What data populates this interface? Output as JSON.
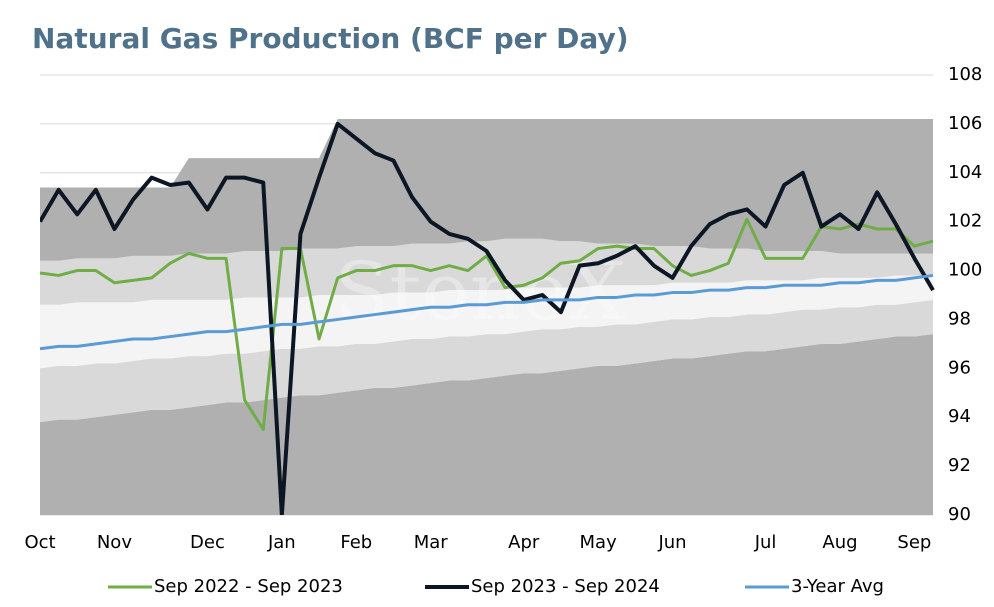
{
  "chart_data": {
    "type": "line",
    "title": "Natural Gas Production (BCF per Day)",
    "watermark": "StoneX",
    "categories": [
      "Oct",
      null,
      null,
      null,
      "Nov",
      null,
      null,
      null,
      null,
      "Dec",
      null,
      null,
      null,
      "Jan",
      null,
      null,
      null,
      "Feb",
      null,
      null,
      null,
      "Mar",
      null,
      null,
      null,
      null,
      "Apr",
      null,
      null,
      null,
      "May",
      null,
      null,
      null,
      "Jun",
      null,
      null,
      null,
      null,
      "Jul",
      null,
      null,
      null,
      "Aug",
      null,
      null,
      null,
      "Sep",
      null
    ],
    "ylim": [
      90,
      108
    ],
    "yticks": [
      90,
      92,
      94,
      96,
      98,
      100,
      102,
      104,
      106,
      108
    ],
    "grid": true,
    "bands": [
      {
        "color": "#b1b0b0",
        "values": [
          93.8,
          93.9,
          93.9,
          94.0,
          94.1,
          94.2,
          94.3,
          94.3,
          94.4,
          94.5,
          94.6,
          94.6,
          94.7,
          94.8,
          94.9,
          94.9,
          95.0,
          95.1,
          95.2,
          95.2,
          95.3,
          95.4,
          95.5,
          95.5,
          95.6,
          95.7,
          95.8,
          95.8,
          95.9,
          96.0,
          96.1,
          96.1,
          96.2,
          96.3,
          96.4,
          96.4,
          96.5,
          96.6,
          96.7,
          96.7,
          96.8,
          96.9,
          97.0,
          97.0,
          97.1,
          97.2,
          97.3,
          97.3,
          97.4
        ]
      },
      {
        "color": "#d9d9d9",
        "values": [
          96.0,
          96.1,
          96.1,
          96.2,
          96.2,
          96.3,
          96.4,
          96.4,
          96.5,
          96.5,
          96.6,
          96.6,
          96.7,
          96.8,
          96.8,
          96.9,
          96.9,
          97.0,
          97.0,
          97.1,
          97.2,
          97.2,
          97.3,
          97.3,
          97.4,
          97.4,
          97.5,
          97.6,
          97.6,
          97.7,
          97.7,
          97.8,
          97.8,
          97.9,
          98.0,
          98.0,
          98.1,
          98.1,
          98.2,
          98.2,
          98.3,
          98.4,
          98.4,
          98.5,
          98.5,
          98.6,
          98.6,
          98.7,
          98.8
        ]
      },
      {
        "color": "#f4f4f4",
        "values": [
          98.6,
          98.6,
          98.7,
          98.7,
          98.7,
          98.7,
          98.8,
          98.8,
          98.8,
          98.8,
          98.8,
          98.9,
          98.9,
          98.9,
          98.9,
          99.0,
          99.0,
          99.0,
          99.0,
          99.1,
          99.1,
          99.1,
          99.2,
          99.2,
          99.2,
          99.2,
          99.3,
          99.3,
          99.3,
          99.3,
          99.4,
          99.4,
          99.4,
          99.4,
          99.5,
          99.5,
          99.5,
          99.5,
          99.6,
          99.6,
          99.6,
          99.6,
          99.7,
          99.7,
          99.7,
          99.7,
          99.8,
          99.8,
          99.8
        ]
      },
      {
        "color": "#d9d9d9",
        "values": [
          100.4,
          100.4,
          100.5,
          100.5,
          100.5,
          100.6,
          100.6,
          100.6,
          100.7,
          100.7,
          100.7,
          100.8,
          100.8,
          100.8,
          100.9,
          100.9,
          100.9,
          101.0,
          101.0,
          101.0,
          101.1,
          101.1,
          101.1,
          101.2,
          101.2,
          101.3,
          101.3,
          101.3,
          101.2,
          101.2,
          101.1,
          101.1,
          101.1,
          101.0,
          101.0,
          101.0,
          100.9,
          100.9,
          100.9,
          100.8,
          100.8,
          100.8,
          100.8,
          100.7,
          100.7,
          100.7,
          100.7,
          100.7,
          100.7
        ]
      },
      {
        "color": "#b1b0b0",
        "values": [
          103.4,
          103.4,
          103.4,
          103.4,
          103.4,
          103.4,
          103.4,
          103.4,
          104.6,
          104.6,
          104.6,
          104.6,
          104.6,
          104.6,
          104.6,
          104.6,
          106.2,
          106.2,
          106.2,
          106.2,
          106.2,
          106.2,
          106.2,
          106.2,
          106.2,
          106.2,
          106.2,
          106.2,
          106.2,
          106.2,
          106.2,
          106.2,
          106.2,
          106.2,
          106.2,
          106.2,
          106.2,
          106.2,
          106.2,
          106.2,
          106.2,
          106.2,
          106.2,
          106.2,
          106.2,
          106.2,
          106.2,
          106.2,
          106.2
        ]
      }
    ],
    "series": [
      {
        "name": "Sep 2022 - Sep 2023",
        "color": "#70ad47",
        "width": 3,
        "values": [
          99.9,
          99.8,
          100.0,
          100.0,
          99.5,
          99.6,
          99.7,
          100.3,
          100.7,
          100.5,
          100.5,
          94.7,
          93.5,
          100.9,
          100.9,
          97.2,
          99.7,
          100.0,
          100.0,
          100.2,
          100.2,
          100.0,
          100.2,
          100.0,
          100.6,
          99.3,
          99.4,
          99.7,
          100.3,
          100.4,
          100.9,
          101.0,
          100.9,
          100.9,
          100.2,
          99.8,
          100.0,
          100.3,
          102.1,
          100.5,
          100.5,
          100.5,
          101.8,
          101.7,
          101.9,
          101.7,
          101.7,
          101.0,
          101.2
        ]
      },
      {
        "name": "Sep 2023 - Sep 2024",
        "color": "#0d1624",
        "width": 4,
        "values": [
          102.0,
          103.3,
          102.3,
          103.3,
          101.7,
          102.9,
          103.8,
          103.5,
          103.6,
          102.5,
          103.8,
          103.8,
          103.6,
          90.0,
          101.5,
          103.8,
          106.0,
          105.4,
          104.8,
          104.5,
          103.0,
          102.0,
          101.5,
          101.3,
          100.8,
          99.6,
          98.8,
          99.0,
          98.3,
          100.2,
          100.3,
          100.6,
          101.0,
          100.2,
          99.7,
          101.0,
          101.9,
          102.3,
          102.5,
          101.8,
          103.5,
          104.0,
          101.8,
          102.3,
          101.7,
          103.2,
          101.9,
          100.5,
          99.2
        ]
      },
      {
        "name": "3-Year Avg",
        "color": "#5b9bd5",
        "width": 3,
        "values": [
          96.8,
          96.9,
          96.9,
          97.0,
          97.1,
          97.2,
          97.2,
          97.3,
          97.4,
          97.5,
          97.5,
          97.6,
          97.7,
          97.8,
          97.8,
          97.9,
          98.0,
          98.1,
          98.2,
          98.3,
          98.4,
          98.5,
          98.5,
          98.6,
          98.6,
          98.7,
          98.7,
          98.8,
          98.8,
          98.8,
          98.9,
          98.9,
          99.0,
          99.0,
          99.1,
          99.1,
          99.2,
          99.2,
          99.3,
          99.3,
          99.4,
          99.4,
          99.4,
          99.5,
          99.5,
          99.6,
          99.6,
          99.7,
          99.8
        ]
      }
    ]
  }
}
